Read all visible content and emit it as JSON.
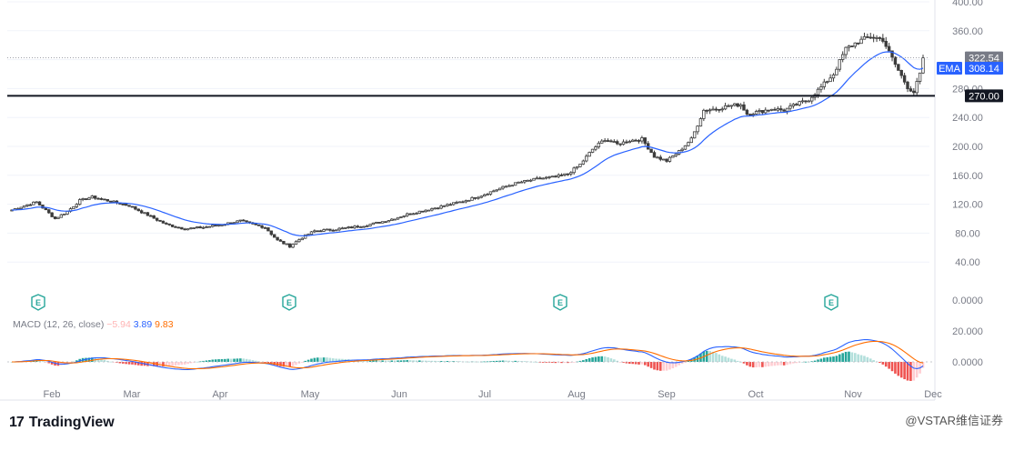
{
  "chart_data": {
    "type": "candlestick",
    "price_axis": {
      "ticks": [
        "400.00",
        "360.00",
        "280.00",
        "240.00",
        "200.00",
        "160.00",
        "120.00",
        "80.00",
        "40.00"
      ],
      "range": [
        0,
        400
      ]
    },
    "horizontal_line": {
      "value": 270.0,
      "label": "270.00"
    },
    "last_price": {
      "value": 322.54,
      "label": "322.54"
    },
    "ema": {
      "name": "EMA",
      "value": 308.14,
      "label": "308.14",
      "color": "#2962ff"
    },
    "months": [
      "Feb",
      "Mar",
      "Apr",
      "May",
      "Jun",
      "Jul",
      "Aug",
      "Sep",
      "Oct",
      "Nov",
      "Dec"
    ],
    "earnings_markers": [
      "E",
      "E",
      "E",
      "E"
    ],
    "price_anchors": [
      [
        0,
        112
      ],
      [
        4,
        118
      ],
      [
        8,
        123
      ],
      [
        14,
        100
      ],
      [
        18,
        110
      ],
      [
        22,
        125
      ],
      [
        26,
        130
      ],
      [
        32,
        124
      ],
      [
        38,
        118
      ],
      [
        44,
        105
      ],
      [
        50,
        92
      ],
      [
        56,
        86
      ],
      [
        62,
        88
      ],
      [
        68,
        92
      ],
      [
        74,
        97
      ],
      [
        78,
        92
      ],
      [
        82,
        88
      ],
      [
        86,
        70
      ],
      [
        90,
        62
      ],
      [
        94,
        74
      ],
      [
        98,
        83
      ],
      [
        104,
        85
      ],
      [
        110,
        88
      ],
      [
        116,
        92
      ],
      [
        122,
        98
      ],
      [
        128,
        106
      ],
      [
        134,
        112
      ],
      [
        140,
        118
      ],
      [
        146,
        124
      ],
      [
        152,
        132
      ],
      [
        158,
        142
      ],
      [
        164,
        150
      ],
      [
        170,
        155
      ],
      [
        176,
        158
      ],
      [
        180,
        162
      ],
      [
        184,
        175
      ],
      [
        188,
        196
      ],
      [
        192,
        210
      ],
      [
        196,
        203
      ],
      [
        200,
        208
      ],
      [
        204,
        210
      ],
      [
        208,
        186
      ],
      [
        212,
        180
      ],
      [
        216,
        193
      ],
      [
        220,
        210
      ],
      [
        224,
        250
      ],
      [
        228,
        252
      ],
      [
        232,
        256
      ],
      [
        236,
        258
      ],
      [
        238,
        245
      ],
      [
        242,
        248
      ],
      [
        246,
        252
      ],
      [
        250,
        250
      ],
      [
        254,
        258
      ],
      [
        258,
        265
      ],
      [
        262,
        282
      ],
      [
        266,
        300
      ],
      [
        270,
        335
      ],
      [
        274,
        345
      ],
      [
        278,
        352
      ],
      [
        282,
        348
      ],
      [
        284,
        330
      ],
      [
        287,
        305
      ],
      [
        290,
        282
      ],
      [
        292,
        275
      ],
      [
        294,
        300
      ],
      [
        295,
        322.54
      ]
    ],
    "macd": {
      "label": "MACD (12, 26, close)",
      "histogram": -5.94,
      "histogram_label": "−5.94",
      "macd_value": 3.89,
      "macd_label": "3.89",
      "signal_value": 9.83,
      "signal_label": "9.83",
      "axis_ticks": [
        "0.0000",
        "20.000",
        "0.0000"
      ],
      "macd_color": "#2962ff",
      "signal_color": "#ff6d00",
      "hist_pos_color": "#26a69a",
      "hist_neg_color": "#ef5350"
    },
    "colors": {
      "candle": "#3c3c3c",
      "grid": "#f0f3fa",
      "axis_text": "#787b86"
    }
  },
  "branding": {
    "logo_mark": "17",
    "logo_text": "TradingView",
    "watermark": "@VSTAR维信证券"
  }
}
